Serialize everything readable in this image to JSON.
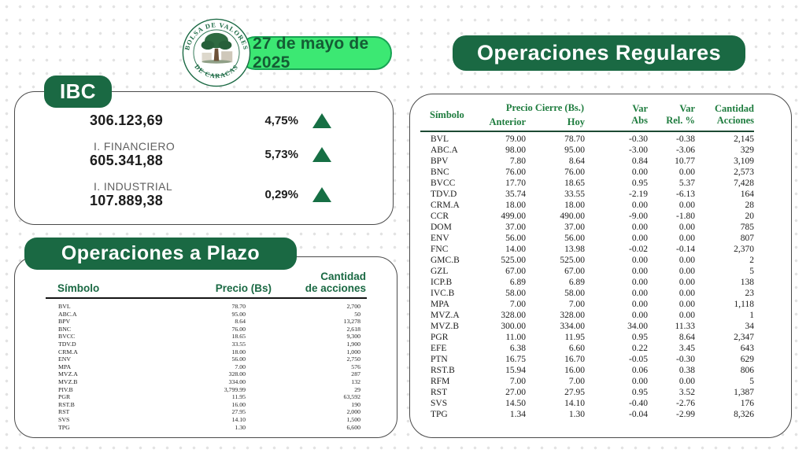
{
  "header": {
    "date": "27 de mayo de 2025",
    "logo": {
      "arc_top": "BOLSA DE VALORES",
      "arc_bottom": "DE CARACAS"
    }
  },
  "ibc": {
    "title": "IBC",
    "rows": [
      {
        "label": "",
        "value": "306.123,69",
        "change": "4,75%",
        "direction": "up"
      },
      {
        "label": "I. FINANCIERO",
        "value": "605.341,88",
        "change": "5,73%",
        "direction": "up"
      },
      {
        "label": "I. INDUSTRIAL",
        "value": "107.889,38",
        "change": "0,29%",
        "direction": "up"
      }
    ]
  },
  "plazo": {
    "title": "Operaciones a Plazo",
    "headers": {
      "symbol": "Símbolo",
      "price": "Precio (Bs)",
      "qty_line1": "Cantidad",
      "qty_line2": "de acciones"
    },
    "rows": [
      [
        "BVL",
        "78.70",
        "2,700"
      ],
      [
        "ABC.A",
        "95.00",
        "50"
      ],
      [
        "BPV",
        "8.64",
        "13,278"
      ],
      [
        "BNC",
        "76.00",
        "2,618"
      ],
      [
        "BVCC",
        "18.65",
        "9,300"
      ],
      [
        "TDV.D",
        "33.55",
        "1,900"
      ],
      [
        "CRM.A",
        "18.00",
        "1,000"
      ],
      [
        "ENV",
        "56.00",
        "2,750"
      ],
      [
        "MPA",
        "7.00",
        "576"
      ],
      [
        "MVZ.A",
        "328.00",
        "287"
      ],
      [
        "MVZ.B",
        "334.00",
        "132"
      ],
      [
        "PIV.B",
        "3,799.99",
        "29"
      ],
      [
        "PGR",
        "11.95",
        "63,592"
      ],
      [
        "RST.B",
        "16.00",
        "190"
      ],
      [
        "RST",
        "27.95",
        "2,000"
      ],
      [
        "SVS",
        "14.10",
        "1,500"
      ],
      [
        "TPG",
        "1.30",
        "6,600"
      ]
    ]
  },
  "regulares": {
    "title": "Operaciones Regulares",
    "headers": {
      "symbol": "Símbolo",
      "price_group": "Precio Cierre (Bs.)",
      "anterior": "Anterior",
      "hoy": "Hoy",
      "var_abs_line1": "Var",
      "var_abs_line2": "Abs",
      "var_rel_line1": "Var",
      "var_rel_line2": "Rel. %",
      "qty_line1": "Cantidad",
      "qty_line2": "Acciones"
    },
    "rows": [
      [
        "BVL",
        "79.00",
        "78.70",
        "-0.30",
        "-0.38",
        "2,145"
      ],
      [
        "ABC.A",
        "98.00",
        "95.00",
        "-3.00",
        "-3.06",
        "329"
      ],
      [
        "BPV",
        "7.80",
        "8.64",
        "0.84",
        "10.77",
        "3,109"
      ],
      [
        "BNC",
        "76.00",
        "76.00",
        "0.00",
        "0.00",
        "2,573"
      ],
      [
        "BVCC",
        "17.70",
        "18.65",
        "0.95",
        "5.37",
        "7,428"
      ],
      [
        "TDV.D",
        "35.74",
        "33.55",
        "-2.19",
        "-6.13",
        "164"
      ],
      [
        "CRM.A",
        "18.00",
        "18.00",
        "0.00",
        "0.00",
        "28"
      ],
      [
        "CCR",
        "499.00",
        "490.00",
        "-9.00",
        "-1.80",
        "20"
      ],
      [
        "DOM",
        "37.00",
        "37.00",
        "0.00",
        "0.00",
        "785"
      ],
      [
        "ENV",
        "56.00",
        "56.00",
        "0.00",
        "0.00",
        "807"
      ],
      [
        "FNC",
        "14.00",
        "13.98",
        "-0.02",
        "-0.14",
        "2,370"
      ],
      [
        "GMC.B",
        "525.00",
        "525.00",
        "0.00",
        "0.00",
        "2"
      ],
      [
        "GZL",
        "67.00",
        "67.00",
        "0.00",
        "0.00",
        "5"
      ],
      [
        "ICP.B",
        "6.89",
        "6.89",
        "0.00",
        "0.00",
        "138"
      ],
      [
        "IVC.B",
        "58.00",
        "58.00",
        "0.00",
        "0.00",
        "23"
      ],
      [
        "MPA",
        "7.00",
        "7.00",
        "0.00",
        "0.00",
        "1,118"
      ],
      [
        "MVZ.A",
        "328.00",
        "328.00",
        "0.00",
        "0.00",
        "1"
      ],
      [
        "MVZ.B",
        "300.00",
        "334.00",
        "34.00",
        "11.33",
        "34"
      ],
      [
        "PGR",
        "11.00",
        "11.95",
        "0.95",
        "8.64",
        "2,347"
      ],
      [
        "EFE",
        "6.38",
        "6.60",
        "0.22",
        "3.45",
        "643"
      ],
      [
        "PTN",
        "16.75",
        "16.70",
        "-0.05",
        "-0.30",
        "629"
      ],
      [
        "RST.B",
        "15.94",
        "16.00",
        "0.06",
        "0.38",
        "806"
      ],
      [
        "RFM",
        "7.00",
        "7.00",
        "0.00",
        "0.00",
        "5"
      ],
      [
        "RST",
        "27.00",
        "27.95",
        "0.95",
        "3.52",
        "1,387"
      ],
      [
        "SVS",
        "14.50",
        "14.10",
        "-0.40",
        "-2.76",
        "176"
      ],
      [
        "TPG",
        "1.34",
        "1.30",
        "-0.04",
        "-2.99",
        "8,326"
      ]
    ]
  },
  "icons": {
    "up_change": "triangle-up-icon",
    "brand": "bvc-seal-logo"
  },
  "colors": {
    "dark-green": "#1a6943",
    "bright-green": "#3ce873",
    "pill-border": "#18a354",
    "date-text": "#145c34",
    "header-green": "#1e7c3e",
    "triangle": "#166f44",
    "panel-border": "#4a4a4a",
    "text": "#1c1c1c",
    "label-gray": "#606060",
    "rule-black": "#141414",
    "rule-green": "#1d4a34",
    "dot": "#e3e3e3"
  }
}
